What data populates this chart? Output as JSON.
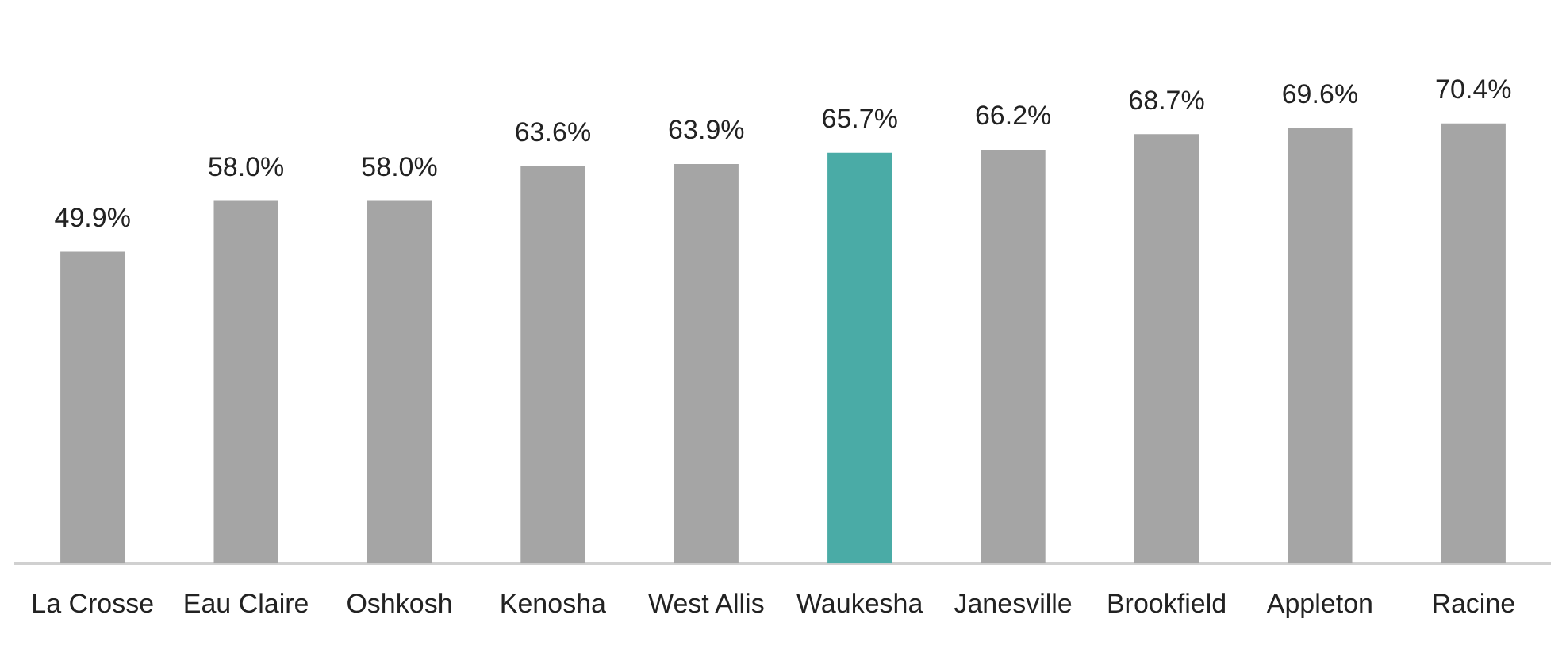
{
  "chart_data": {
    "type": "bar",
    "categories": [
      "La Crosse",
      "Eau Claire",
      "Oshkosh",
      "Kenosha",
      "West Allis",
      "Waukesha",
      "Janesville",
      "Brookfield",
      "Appleton",
      "Racine"
    ],
    "values": [
      49.9,
      58.0,
      58.0,
      63.6,
      63.9,
      65.7,
      66.2,
      68.7,
      69.6,
      70.4
    ],
    "colors": [
      "#a5a5a5",
      "#a5a5a5",
      "#a5a5a5",
      "#a5a5a5",
      "#a5a5a5",
      "#4aaba6",
      "#a5a5a5",
      "#a5a5a5",
      "#a5a5a5",
      "#a5a5a5"
    ],
    "value_labels": [
      "49.9%",
      "58.0%",
      "58.0%",
      "63.6%",
      "63.9%",
      "65.7%",
      "66.2%",
      "68.7%",
      "69.6%",
      "70.4%"
    ],
    "grid": false,
    "legend": false
  }
}
